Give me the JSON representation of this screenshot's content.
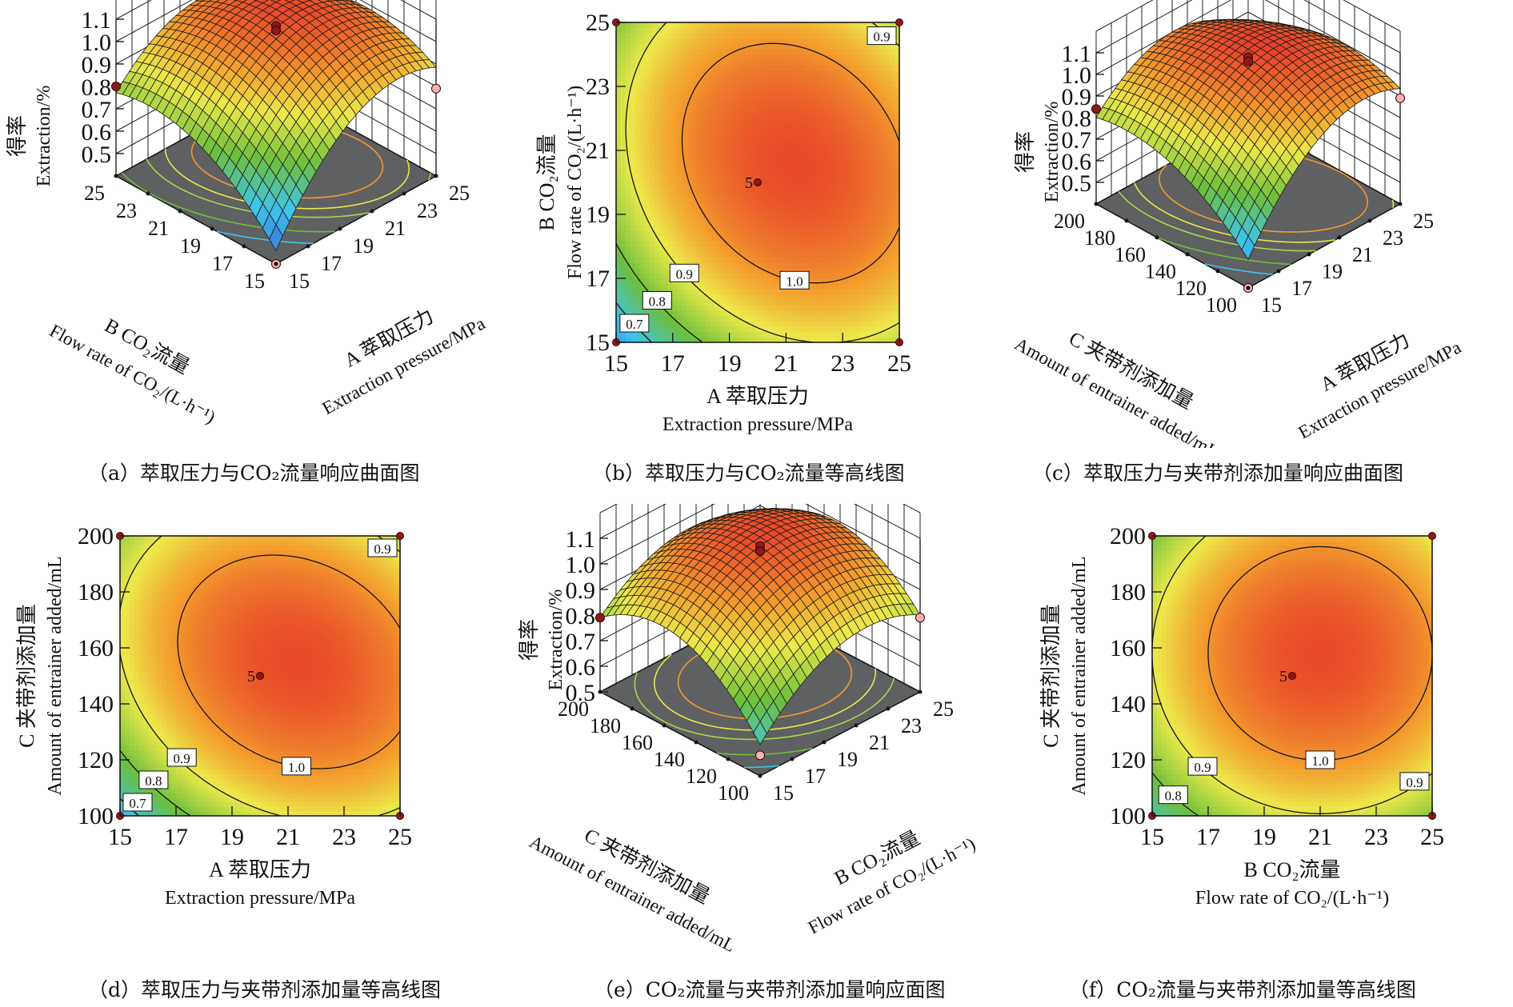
{
  "figure": {
    "captions": {
      "a": "（a）萃取压力与CO₂流量响应曲面图",
      "b": "（b）萃取压力与CO₂流量等高线图",
      "c": "（c）萃取压力与夹带剂添加量响应曲面图",
      "d": "（d）萃取压力与夹带剂添加量等高线图",
      "e": "（e）CO₂流量与夹带剂添加量响应面图",
      "f": "（f）CO₂流量与夹带剂添加量等高线图"
    }
  },
  "colors": {
    "low": "#3a6fd8",
    "cyan": "#3ec4ec",
    "green": "#6cbf3c",
    "yellow": "#ece94a",
    "orange": "#f39a2c",
    "red": "#e8412b",
    "floor": "#5f6062",
    "design_point": "#8b1a1a"
  },
  "chart_data": [
    {
      "id": "a",
      "type": "surface3d",
      "title": "（a）萃取压力与CO₂流量响应曲面图",
      "zlabel_cn": "得率",
      "zlabel_en": "Extraction/%",
      "xlabel_cn": "A 萃取压力",
      "xlabel_en": "Extraction pressure/MPa",
      "ylabel_cn": "B CO₂流量",
      "ylabel_en": "Flow rate of CO₂/(L·h⁻¹)",
      "x_ticks": [
        "15",
        "17",
        "19",
        "21",
        "23",
        "25"
      ],
      "y_ticks": [
        "15",
        "17",
        "19",
        "21",
        "23",
        "25"
      ],
      "z_ticks": [
        "0.5",
        "0.6",
        "0.7",
        "0.8",
        "0.9",
        "1.0",
        "1.1"
      ],
      "xlim": [
        15,
        25
      ],
      "ylim": [
        15,
        25
      ],
      "zlim": [
        0.4,
        1.1
      ],
      "peak": {
        "x": 21.3,
        "y": 20.6,
        "z": 1.08
      },
      "corner_values": {
        "x15y15": 0.42,
        "x25y15": 0.86,
        "x15y25": 0.79,
        "x25y25": 0.89
      },
      "design_points": [
        {
          "x": 20,
          "y": 20,
          "z": 1.07
        },
        {
          "x": 20,
          "y": 20,
          "z": 1.05
        },
        {
          "x": 15,
          "y": 25,
          "z": 0.8
        },
        {
          "x": 25,
          "y": 15,
          "z": 0.79
        },
        {
          "x": 15,
          "y": 15,
          "z": 0.4
        }
      ]
    },
    {
      "id": "b",
      "type": "contour",
      "title": "（b）萃取压力与CO₂流量等高线图",
      "xlabel_cn": "A 萃取压力",
      "xlabel_en": "Extraction pressure/MPa",
      "ylabel_cn": "B CO₂流量",
      "ylabel_en": "Flow rate of CO₂/(L·h⁻¹)",
      "x_ticks": [
        "15",
        "17",
        "19",
        "21",
        "23",
        "25"
      ],
      "y_ticks": [
        "15",
        "17",
        "19",
        "21",
        "23",
        "25"
      ],
      "xlim": [
        15,
        25
      ],
      "ylim": [
        15,
        25
      ],
      "center": {
        "x": 21.3,
        "y": 20.6,
        "z": 1.08
      },
      "corner_values": {
        "x15y15": 0.6,
        "x25y15": 0.86,
        "x15y25": 0.82,
        "x25y25": 0.88
      },
      "contour_levels": [
        "0.7",
        "0.8",
        "0.9",
        "1.0",
        "0.9"
      ],
      "center_label": "5",
      "center_point": {
        "x": 20,
        "y": 20
      }
    },
    {
      "id": "c",
      "type": "surface3d",
      "title": "（c）萃取压力与夹带剂添加量响应曲面图",
      "zlabel_cn": "得率",
      "zlabel_en": "Extraction/%",
      "xlabel_cn": "A 萃取压力",
      "xlabel_en": "Extraction pressure/MPa",
      "ylabel_cn": "C 夹带剂添加量",
      "ylabel_en": "Amount of entrainer added/mL",
      "x_ticks": [
        "15",
        "17",
        "19",
        "21",
        "23",
        "25"
      ],
      "y_ticks": [
        "100",
        "120",
        "140",
        "160",
        "180",
        "200"
      ],
      "z_ticks": [
        "0.5",
        "0.6",
        "0.7",
        "0.8",
        "0.9",
        "1.0",
        "1.1"
      ],
      "xlim": [
        15,
        25
      ],
      "ylim": [
        100,
        200
      ],
      "zlim": [
        0.4,
        1.1
      ],
      "peak": {
        "x": 21.3,
        "y": 153,
        "z": 1.09
      },
      "corner_values": {
        "x15y100": 0.49,
        "x25y100": 0.89,
        "x15y200": 0.83,
        "x25y200": 0.9
      },
      "design_points": [
        {
          "x": 20,
          "y": 150,
          "z": 1.08
        },
        {
          "x": 20,
          "y": 150,
          "z": 1.06
        },
        {
          "x": 15,
          "y": 200,
          "z": 0.84
        },
        {
          "x": 25,
          "y": 100,
          "z": 0.89
        },
        {
          "x": 15,
          "y": 100,
          "z": 0.4
        }
      ]
    },
    {
      "id": "d",
      "type": "contour",
      "title": "（d）萃取压力与夹带剂添加量等高线图",
      "xlabel_cn": "A 萃取压力",
      "xlabel_en": "Extraction pressure/MPa",
      "ylabel_cn": "C 夹带剂添加量",
      "ylabel_en": "Amount of entrainer added/mL",
      "x_ticks": [
        "15",
        "17",
        "19",
        "21",
        "23",
        "25"
      ],
      "y_ticks": [
        "100",
        "120",
        "140",
        "160",
        "180",
        "200"
      ],
      "xlim": [
        15,
        25
      ],
      "ylim": [
        100,
        200
      ],
      "center": {
        "x": 21.3,
        "y": 155,
        "z": 1.08
      },
      "corner_values": {
        "x15y100": 0.65,
        "x25y100": 0.88,
        "x15y200": 0.84,
        "x25y200": 0.88
      },
      "contour_levels": [
        "0.7",
        "0.8",
        "0.9",
        "1.0",
        "0.9"
      ],
      "center_label": "5",
      "center_point": {
        "x": 20,
        "y": 150
      }
    },
    {
      "id": "e",
      "type": "surface3d",
      "title": "（e）CO₂流量与夹带剂添加量响应面图",
      "zlabel_cn": "得率",
      "zlabel_en": "Extraction/%",
      "xlabel_cn": "B CO₂流量",
      "xlabel_en": "Flow rate of CO₂/(L·h⁻¹)",
      "ylabel_cn": "C 夹带剂添加量",
      "ylabel_en": "Amount of entrainer added/mL",
      "x_ticks": [
        "15",
        "17",
        "19",
        "21",
        "23",
        "25"
      ],
      "y_ticks": [
        "100",
        "120",
        "140",
        "160",
        "180",
        "200"
      ],
      "z_ticks": [
        "0.5",
        "0.6",
        "0.7",
        "0.8",
        "0.9",
        "1.0",
        "1.1"
      ],
      "xlim": [
        15,
        25
      ],
      "ylim": [
        100,
        200
      ],
      "zlim": [
        0.5,
        1.1
      ],
      "peak": {
        "x": 21,
        "y": 157,
        "z": 1.08
      },
      "corner_values": {
        "x15y100": 0.62,
        "x25y100": 0.8,
        "x15y200": 0.79,
        "x25y200": 0.85
      },
      "design_points": [
        {
          "x": 20,
          "y": 150,
          "z": 1.07
        },
        {
          "x": 20,
          "y": 150,
          "z": 1.05
        },
        {
          "x": 15,
          "y": 200,
          "z": 0.79
        },
        {
          "x": 25,
          "y": 100,
          "z": 0.79
        },
        {
          "x": 15,
          "y": 100,
          "z": 0.58
        }
      ]
    },
    {
      "id": "f",
      "type": "contour",
      "title": "（f）CO₂流量与夹带剂添加量等高线图",
      "xlabel_cn": "B CO₂流量",
      "xlabel_en": "Flow rate of CO₂/(L·h⁻¹)",
      "ylabel_cn": "C 夹带剂添加量",
      "ylabel_en": "Amount of entrainer added/mL",
      "x_ticks": [
        "15",
        "17",
        "19",
        "21",
        "23",
        "25"
      ],
      "y_ticks": [
        "100",
        "120",
        "140",
        "160",
        "180",
        "200"
      ],
      "xlim": [
        15,
        25
      ],
      "ylim": [
        100,
        200
      ],
      "center": {
        "x": 21,
        "y": 158,
        "z": 1.08
      },
      "corner_values": {
        "x15y100": 0.74,
        "x25y100": 0.82,
        "x15y200": 0.8,
        "x25y200": 0.85
      },
      "contour_levels": [
        "0.8",
        "0.9",
        "1.0",
        "0.9"
      ],
      "center_label": "5",
      "center_point": {
        "x": 20,
        "y": 150
      }
    }
  ]
}
